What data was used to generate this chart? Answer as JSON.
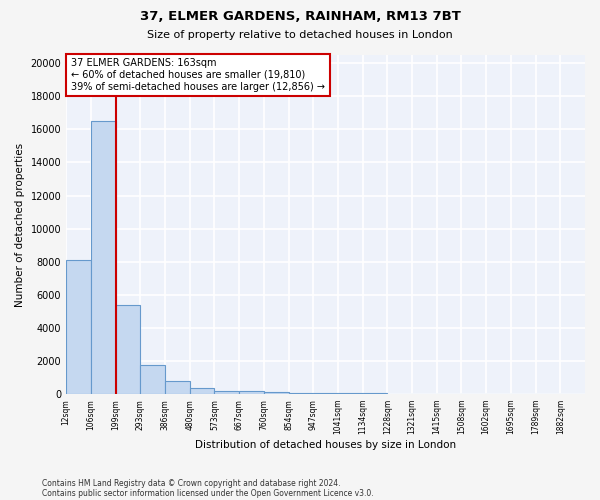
{
  "title1": "37, ELMER GARDENS, RAINHAM, RM13 7BT",
  "title2": "Size of property relative to detached houses in London",
  "xlabel": "Distribution of detached houses by size in London",
  "ylabel": "Number of detached properties",
  "bin_labels": [
    "12sqm",
    "106sqm",
    "199sqm",
    "293sqm",
    "386sqm",
    "480sqm",
    "573sqm",
    "667sqm",
    "760sqm",
    "854sqm",
    "947sqm",
    "1041sqm",
    "1134sqm",
    "1228sqm",
    "1321sqm",
    "1415sqm",
    "1508sqm",
    "1602sqm",
    "1695sqm",
    "1789sqm",
    "1882sqm"
  ],
  "bar_heights": [
    8100,
    16500,
    5400,
    1750,
    800,
    350,
    200,
    150,
    100,
    60,
    50,
    40,
    30,
    25,
    20,
    15,
    12,
    10,
    8,
    6,
    5
  ],
  "bar_color": "#c5d8f0",
  "bar_edge_color": "#6699cc",
  "marker_bin": 2,
  "annotation_line1": "37 ELMER GARDENS: 163sqm",
  "annotation_line2": "← 60% of detached houses are smaller (19,810)",
  "annotation_line3": "39% of semi-detached houses are larger (12,856) →",
  "marker_color": "#cc0000",
  "ylim": [
    0,
    20500
  ],
  "yticks": [
    0,
    2000,
    4000,
    6000,
    8000,
    10000,
    12000,
    14000,
    16000,
    18000,
    20000
  ],
  "footnote1": "Contains HM Land Registry data © Crown copyright and database right 2024.",
  "footnote2": "Contains public sector information licensed under the Open Government Licence v3.0.",
  "bg_color": "#eef2fa",
  "grid_color": "#ffffff",
  "fig_bg_color": "#f5f5f5"
}
